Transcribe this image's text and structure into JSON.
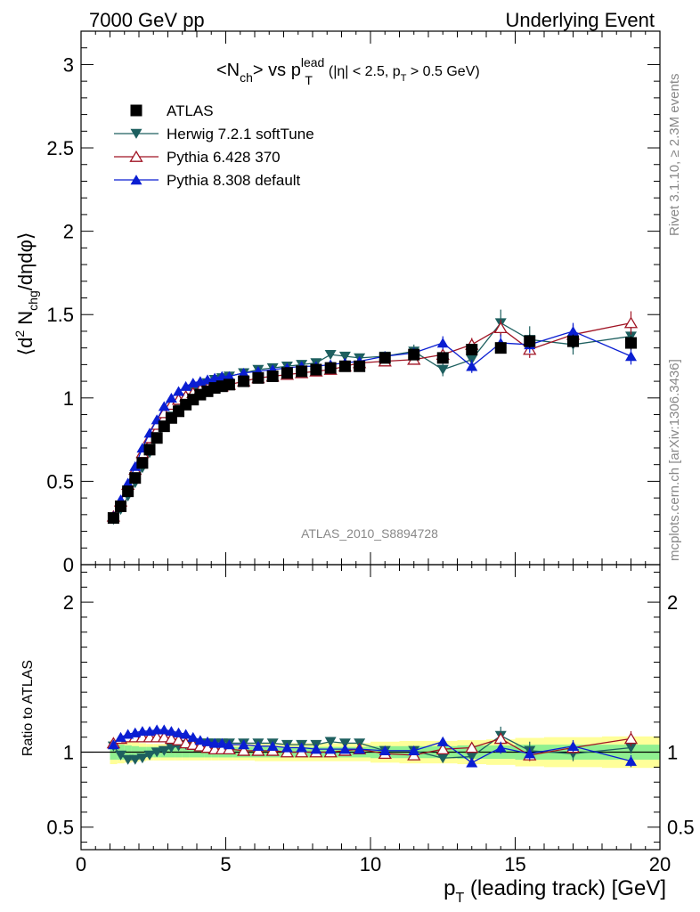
{
  "header": {
    "left": "7000 GeV pp",
    "right": "Underlying Event"
  },
  "side_labels": {
    "rivet": "Rivet 3.1.10, ≥ 2.3M events",
    "mcplots": "mcplots.cern.ch [arXiv:1306.3436]"
  },
  "analysis_label": "ATLAS_2010_S8894728",
  "chart_data": [
    {
      "type": "scatter",
      "title_parts": {
        "lhs": "<N",
        "lhs_sub": "ch",
        "vs": "> vs p",
        "sup": "lead",
        "sub": "T",
        "cut1": "(|η| < 2.5, p",
        "cut_sub": "T",
        "cut2": " > 0.5 GeV)"
      },
      "ylabel_parts": {
        "open": "⟨d",
        "sup": "2",
        "mid": " N",
        "sub": "chg",
        "end": "/dηdφ⟩"
      },
      "xlim": [
        0,
        20
      ],
      "ylim": [
        0,
        3.2
      ],
      "yticks": [
        0,
        0.5,
        1,
        1.5,
        2,
        2.5,
        3
      ],
      "ytick_labels": [
        "0",
        "0.5",
        "1",
        "1.5",
        "2",
        "2.5",
        "3"
      ],
      "legend_position": "top-left",
      "series": [
        {
          "name": "ATLAS",
          "color": "#000000",
          "marker": "square",
          "x": [
            1.12,
            1.37,
            1.62,
            1.87,
            2.12,
            2.37,
            2.62,
            2.87,
            3.12,
            3.37,
            3.62,
            3.87,
            4.12,
            4.37,
            4.62,
            4.87,
            5.12,
            5.62,
            6.12,
            6.62,
            7.12,
            7.62,
            8.12,
            8.62,
            9.12,
            9.62,
            10.5,
            11.5,
            12.5,
            13.5,
            14.5,
            15.5,
            17.0,
            19.0
          ],
          "y": [
            0.28,
            0.35,
            0.44,
            0.52,
            0.61,
            0.69,
            0.76,
            0.83,
            0.88,
            0.92,
            0.96,
            0.99,
            1.02,
            1.04,
            1.06,
            1.07,
            1.08,
            1.1,
            1.12,
            1.13,
            1.15,
            1.16,
            1.17,
            1.18,
            1.19,
            1.19,
            1.24,
            1.26,
            1.24,
            1.29,
            1.3,
            1.34,
            1.34,
            1.33
          ],
          "yerr": [
            0.01,
            0.01,
            0.01,
            0.01,
            0.01,
            0.01,
            0.01,
            0.01,
            0.01,
            0.01,
            0.01,
            0.01,
            0.01,
            0.01,
            0.01,
            0.01,
            0.01,
            0.01,
            0.01,
            0.01,
            0.01,
            0.01,
            0.01,
            0.01,
            0.01,
            0.01,
            0.02,
            0.02,
            0.03,
            0.03,
            0.03,
            0.04,
            0.04,
            0.04
          ]
        },
        {
          "name": "Herwig 7.2.1 softTune",
          "color": "#1d5f5f",
          "marker": "triangle-down",
          "x": [
            1.12,
            1.37,
            1.62,
            1.87,
            2.12,
            2.37,
            2.62,
            2.87,
            3.12,
            3.37,
            3.62,
            3.87,
            4.12,
            4.37,
            4.62,
            4.87,
            5.12,
            5.62,
            6.12,
            6.62,
            7.12,
            7.62,
            8.12,
            8.62,
            9.12,
            9.62,
            10.5,
            11.5,
            12.5,
            13.5,
            14.5,
            15.5,
            17.0,
            19.0
          ],
          "y": [
            0.27,
            0.33,
            0.41,
            0.49,
            0.58,
            0.67,
            0.76,
            0.83,
            0.89,
            0.95,
            1.0,
            1.04,
            1.07,
            1.09,
            1.11,
            1.12,
            1.13,
            1.15,
            1.17,
            1.18,
            1.19,
            1.2,
            1.21,
            1.26,
            1.25,
            1.24,
            1.25,
            1.28,
            1.17,
            1.23,
            1.45,
            1.35,
            1.32,
            1.37
          ],
          "yerr": [
            0.005,
            0.005,
            0.005,
            0.005,
            0.005,
            0.005,
            0.005,
            0.005,
            0.005,
            0.005,
            0.005,
            0.005,
            0.005,
            0.005,
            0.005,
            0.005,
            0.01,
            0.01,
            0.01,
            0.01,
            0.01,
            0.01,
            0.01,
            0.02,
            0.02,
            0.02,
            0.03,
            0.04,
            0.04,
            0.05,
            0.08,
            0.08,
            0.06,
            0.05
          ]
        },
        {
          "name": "Pythia 6.428 370",
          "color": "#a01424",
          "marker": "triangle-up-open",
          "x": [
            1.12,
            1.37,
            1.62,
            1.87,
            2.12,
            2.37,
            2.62,
            2.87,
            3.12,
            3.37,
            3.62,
            3.87,
            4.12,
            4.37,
            4.62,
            4.87,
            5.12,
            5.62,
            6.12,
            6.62,
            7.12,
            7.62,
            8.12,
            8.62,
            9.12,
            9.62,
            10.5,
            11.5,
            12.5,
            13.5,
            14.5,
            15.5,
            17.0,
            19.0
          ],
          "y": [
            0.29,
            0.38,
            0.48,
            0.57,
            0.67,
            0.76,
            0.84,
            0.91,
            0.96,
            0.99,
            1.01,
            1.03,
            1.05,
            1.06,
            1.07,
            1.07,
            1.08,
            1.1,
            1.12,
            1.13,
            1.14,
            1.15,
            1.16,
            1.17,
            1.19,
            1.21,
            1.22,
            1.23,
            1.26,
            1.32,
            1.42,
            1.29,
            1.38,
            1.45
          ],
          "yerr": [
            0.005,
            0.005,
            0.005,
            0.005,
            0.005,
            0.005,
            0.005,
            0.005,
            0.005,
            0.005,
            0.005,
            0.005,
            0.005,
            0.005,
            0.005,
            0.005,
            0.01,
            0.01,
            0.01,
            0.01,
            0.01,
            0.01,
            0.01,
            0.01,
            0.02,
            0.02,
            0.02,
            0.03,
            0.03,
            0.04,
            0.05,
            0.05,
            0.06,
            0.07
          ]
        },
        {
          "name": "Pythia 8.308 default",
          "color": "#0a1ed2",
          "marker": "triangle-up",
          "x": [
            1.12,
            1.37,
            1.62,
            1.87,
            2.12,
            2.37,
            2.62,
            2.87,
            3.12,
            3.37,
            3.62,
            3.87,
            4.12,
            4.37,
            4.62,
            4.87,
            5.12,
            5.62,
            6.12,
            6.62,
            7.12,
            7.62,
            8.12,
            8.62,
            9.12,
            9.62,
            10.5,
            11.5,
            12.5,
            13.5,
            14.5,
            15.5,
            17.0,
            19.0
          ],
          "y": [
            0.29,
            0.39,
            0.49,
            0.59,
            0.7,
            0.79,
            0.87,
            0.95,
            1.0,
            1.04,
            1.07,
            1.09,
            1.1,
            1.11,
            1.12,
            1.13,
            1.13,
            1.15,
            1.16,
            1.17,
            1.18,
            1.19,
            1.19,
            1.2,
            1.21,
            1.22,
            1.25,
            1.27,
            1.33,
            1.19,
            1.33,
            1.32,
            1.4,
            1.25
          ],
          "yerr": [
            0.005,
            0.005,
            0.005,
            0.005,
            0.005,
            0.005,
            0.005,
            0.005,
            0.005,
            0.005,
            0.005,
            0.005,
            0.005,
            0.005,
            0.005,
            0.005,
            0.01,
            0.01,
            0.01,
            0.01,
            0.01,
            0.01,
            0.01,
            0.01,
            0.02,
            0.02,
            0.02,
            0.03,
            0.04,
            0.04,
            0.05,
            0.05,
            0.05,
            0.05
          ]
        }
      ]
    },
    {
      "type": "scatter",
      "ylabel": "Ratio to ATLAS",
      "xlabel_parts": {
        "p": "p",
        "sub": "T",
        "rest": " (leading track) [GeV]"
      },
      "xlim": [
        0,
        20
      ],
      "ylim": [
        0.35,
        2.25
      ],
      "xticks": [
        0,
        5,
        10,
        15,
        20
      ],
      "xtick_labels": [
        "0",
        "5",
        "10",
        "15",
        "20"
      ],
      "yticks": [
        0.5,
        1,
        2
      ],
      "ytick_labels": [
        "0.5",
        "1",
        "2"
      ],
      "reference_line": 1,
      "bands": {
        "inner_color": "#90f090",
        "outer_color": "#ffff99",
        "x_edges": [
          1.0,
          1.25,
          1.5,
          1.75,
          2.0,
          2.25,
          2.5,
          2.75,
          3.0,
          3.25,
          3.5,
          3.75,
          4.0,
          4.25,
          4.5,
          4.75,
          5.0,
          5.25,
          6.0,
          7.0,
          8.0,
          9.0,
          10.0,
          11.0,
          12.0,
          13.0,
          14.0,
          15.0,
          16.0,
          18.0,
          20.0
        ],
        "inner": [
          0.05,
          0.05,
          0.045,
          0.04,
          0.035,
          0.035,
          0.035,
          0.035,
          0.035,
          0.035,
          0.035,
          0.035,
          0.035,
          0.035,
          0.035,
          0.035,
          0.035,
          0.035,
          0.035,
          0.035,
          0.035,
          0.035,
          0.04,
          0.04,
          0.04,
          0.045,
          0.045,
          0.05,
          0.05,
          0.05
        ],
        "outer": [
          0.08,
          0.075,
          0.07,
          0.065,
          0.06,
          0.055,
          0.055,
          0.055,
          0.055,
          0.055,
          0.055,
          0.055,
          0.055,
          0.055,
          0.055,
          0.055,
          0.055,
          0.055,
          0.06,
          0.06,
          0.06,
          0.06,
          0.07,
          0.075,
          0.075,
          0.08,
          0.085,
          0.095,
          0.1,
          0.105
        ]
      },
      "series": [
        {
          "name": "Herwig 7.2.1 softTune",
          "color": "#1d5f5f",
          "marker": "triangle-down",
          "x": [
            1.12,
            1.37,
            1.62,
            1.87,
            2.12,
            2.37,
            2.62,
            2.87,
            3.12,
            3.37,
            3.62,
            3.87,
            4.12,
            4.37,
            4.62,
            4.87,
            5.12,
            5.62,
            6.12,
            6.62,
            7.12,
            7.62,
            8.12,
            8.62,
            9.12,
            9.62,
            10.5,
            11.5,
            12.5,
            13.5,
            14.5,
            15.5,
            17.0,
            19.0
          ],
          "y": [
            1.04,
            0.98,
            0.95,
            0.95,
            0.96,
            0.98,
            1.0,
            1.01,
            1.03,
            1.04,
            1.05,
            1.05,
            1.06,
            1.06,
            1.06,
            1.06,
            1.06,
            1.06,
            1.06,
            1.06,
            1.05,
            1.05,
            1.05,
            1.07,
            1.06,
            1.06,
            1.01,
            1.01,
            0.96,
            0.97,
            1.11,
            1.01,
            0.99,
            1.03
          ],
          "yerr": [
            0.005,
            0.005,
            0.005,
            0.005,
            0.005,
            0.005,
            0.005,
            0.005,
            0.005,
            0.005,
            0.005,
            0.005,
            0.005,
            0.005,
            0.005,
            0.005,
            0.005,
            0.005,
            0.005,
            0.005,
            0.005,
            0.005,
            0.005,
            0.01,
            0.01,
            0.01,
            0.02,
            0.03,
            0.03,
            0.04,
            0.06,
            0.06,
            0.05,
            0.04
          ]
        },
        {
          "name": "Pythia 6.428 370",
          "color": "#a01424",
          "marker": "triangle-up-open",
          "x": [
            1.12,
            1.37,
            1.62,
            1.87,
            2.12,
            2.37,
            2.62,
            2.87,
            3.12,
            3.37,
            3.62,
            3.87,
            4.12,
            4.37,
            4.62,
            4.87,
            5.12,
            5.62,
            6.12,
            6.62,
            7.12,
            7.62,
            8.12,
            8.62,
            9.12,
            9.62,
            10.5,
            11.5,
            12.5,
            13.5,
            14.5,
            15.5,
            17.0,
            19.0
          ],
          "y": [
            1.06,
            1.09,
            1.1,
            1.1,
            1.1,
            1.1,
            1.1,
            1.1,
            1.09,
            1.08,
            1.06,
            1.05,
            1.04,
            1.03,
            1.02,
            1.02,
            1.02,
            1.01,
            1.01,
            1.01,
            1.0,
            1.0,
            1.0,
            1.0,
            1.01,
            1.02,
            0.99,
            0.98,
            1.02,
            1.03,
            1.09,
            0.98,
            1.03,
            1.09
          ],
          "yerr": [
            0.005,
            0.005,
            0.005,
            0.005,
            0.005,
            0.005,
            0.005,
            0.005,
            0.005,
            0.005,
            0.005,
            0.005,
            0.005,
            0.005,
            0.005,
            0.005,
            0.005,
            0.005,
            0.005,
            0.005,
            0.005,
            0.005,
            0.005,
            0.01,
            0.01,
            0.01,
            0.02,
            0.02,
            0.03,
            0.03,
            0.04,
            0.04,
            0.04,
            0.05
          ]
        },
        {
          "name": "Pythia 8.308 default",
          "color": "#0a1ed2",
          "marker": "triangle-up",
          "x": [
            1.12,
            1.37,
            1.62,
            1.87,
            2.12,
            2.37,
            2.62,
            2.87,
            3.12,
            3.37,
            3.62,
            3.87,
            4.12,
            4.37,
            4.62,
            4.87,
            5.12,
            5.62,
            6.12,
            6.62,
            7.12,
            7.62,
            8.12,
            8.62,
            9.12,
            9.62,
            10.5,
            11.5,
            12.5,
            13.5,
            14.5,
            15.5,
            17.0,
            19.0
          ],
          "y": [
            1.05,
            1.1,
            1.12,
            1.13,
            1.14,
            1.14,
            1.15,
            1.15,
            1.14,
            1.13,
            1.12,
            1.1,
            1.08,
            1.07,
            1.06,
            1.06,
            1.05,
            1.05,
            1.04,
            1.04,
            1.03,
            1.03,
            1.02,
            1.02,
            1.02,
            1.02,
            1.01,
            1.01,
            1.07,
            0.93,
            1.03,
            0.99,
            1.04,
            0.94
          ],
          "yerr": [
            0.005,
            0.005,
            0.005,
            0.005,
            0.005,
            0.005,
            0.005,
            0.005,
            0.005,
            0.005,
            0.005,
            0.005,
            0.005,
            0.005,
            0.005,
            0.005,
            0.005,
            0.005,
            0.005,
            0.005,
            0.005,
            0.005,
            0.005,
            0.01,
            0.01,
            0.01,
            0.02,
            0.02,
            0.03,
            0.03,
            0.04,
            0.04,
            0.04,
            0.04
          ]
        }
      ]
    }
  ]
}
